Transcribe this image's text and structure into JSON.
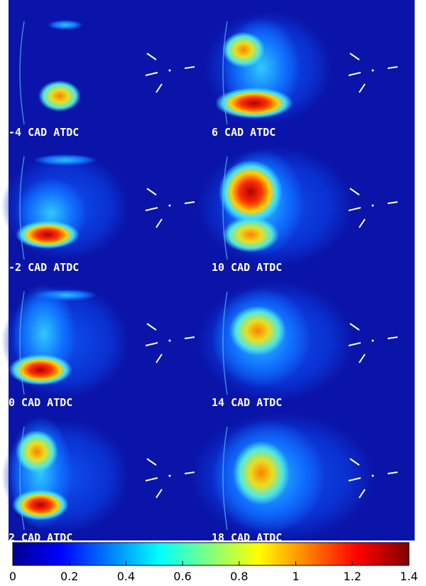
{
  "panels": [
    {
      "label": "-4 CAD ATDC"
    },
    {
      "label": "-2 CAD ATDC"
    },
    {
      "label": "0 CAD ATDC"
    },
    {
      "label": "2 CAD ATDC"
    },
    {
      "label": "6 CAD ATDC"
    },
    {
      "label": "10 CAD ATDC"
    },
    {
      "label": "14 CAD ATDC"
    },
    {
      "label": "18 CAD ATDC"
    }
  ],
  "colorbar": {
    "lim": [
      0,
      1.4
    ],
    "ticks": [
      0,
      0.2,
      0.4,
      0.6,
      0.8,
      1,
      1.2,
      1.4
    ]
  }
}
